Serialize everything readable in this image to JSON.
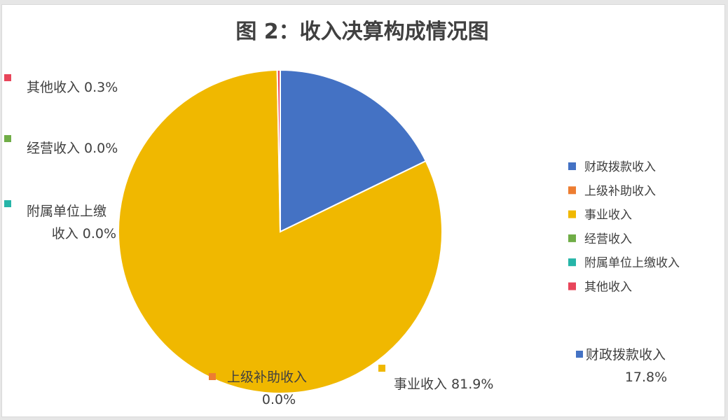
{
  "chart_data": {
    "type": "pie",
    "title": "图 2：收入决算构成情况图",
    "categories": [
      "财政拨款收入",
      "上级补助收入",
      "事业收入",
      "经营收入",
      "附属单位上缴收入",
      "其他收入"
    ],
    "values": [
      17.8,
      0.0,
      81.9,
      0.0,
      0.0,
      0.3
    ],
    "data_labels": [
      "17.8%",
      "0.0%",
      "81.9%",
      "0.0%",
      "0.0%",
      "0.3%"
    ],
    "colors": [
      "#4472c4",
      "#ed7d31",
      "#f0b800",
      "#70ad47",
      "#26b5a8",
      "#e8455a"
    ],
    "legend_position": "right",
    "start_angle_deg": 0
  }
}
